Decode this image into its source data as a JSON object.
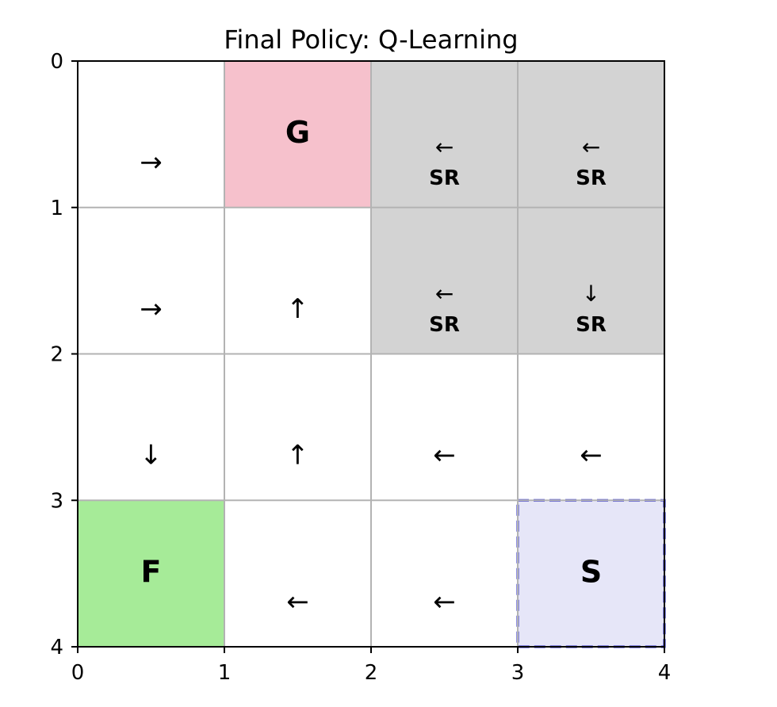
{
  "chart_data": {
    "type": "heatmap",
    "title": "Final Policy: Q-Learning",
    "xlim": [
      0,
      4
    ],
    "ylim": [
      0,
      4
    ],
    "y_inverted": true,
    "grid": true,
    "x_ticks": [
      "0",
      "1",
      "2",
      "3",
      "4"
    ],
    "y_ticks": [
      "0",
      "1",
      "2",
      "3",
      "4"
    ],
    "cells": [
      {
        "row": 0,
        "col": 0,
        "fill": "#ffffff",
        "arrow": "→",
        "label": "",
        "sr": ""
      },
      {
        "row": 0,
        "col": 1,
        "fill": "#f6c1cc",
        "arrow": "",
        "label": "G",
        "sr": ""
      },
      {
        "row": 0,
        "col": 2,
        "fill": "#d3d3d3",
        "arrow": "←",
        "label": "",
        "sr": "SR"
      },
      {
        "row": 0,
        "col": 3,
        "fill": "#d3d3d3",
        "arrow": "←",
        "label": "",
        "sr": "SR"
      },
      {
        "row": 1,
        "col": 0,
        "fill": "#ffffff",
        "arrow": "→",
        "label": "",
        "sr": ""
      },
      {
        "row": 1,
        "col": 1,
        "fill": "#ffffff",
        "arrow": "↑",
        "label": "",
        "sr": ""
      },
      {
        "row": 1,
        "col": 2,
        "fill": "#d3d3d3",
        "arrow": "←",
        "label": "",
        "sr": "SR"
      },
      {
        "row": 1,
        "col": 3,
        "fill": "#d3d3d3",
        "arrow": "↓",
        "label": "",
        "sr": "SR"
      },
      {
        "row": 2,
        "col": 0,
        "fill": "#ffffff",
        "arrow": "↓",
        "label": "",
        "sr": ""
      },
      {
        "row": 2,
        "col": 1,
        "fill": "#ffffff",
        "arrow": "↑",
        "label": "",
        "sr": ""
      },
      {
        "row": 2,
        "col": 2,
        "fill": "#ffffff",
        "arrow": "←",
        "label": "",
        "sr": ""
      },
      {
        "row": 2,
        "col": 3,
        "fill": "#ffffff",
        "arrow": "←",
        "label": "",
        "sr": ""
      },
      {
        "row": 3,
        "col": 0,
        "fill": "#a6eb98",
        "arrow": "",
        "label": "F",
        "sr": ""
      },
      {
        "row": 3,
        "col": 1,
        "fill": "#ffffff",
        "arrow": "←",
        "label": "",
        "sr": ""
      },
      {
        "row": 3,
        "col": 2,
        "fill": "#ffffff",
        "arrow": "←",
        "label": "",
        "sr": ""
      },
      {
        "row": 3,
        "col": 3,
        "fill": "#e6e6f8",
        "arrow": "",
        "label": "S",
        "sr": "",
        "dashed_border": "#2222cc"
      }
    ]
  }
}
